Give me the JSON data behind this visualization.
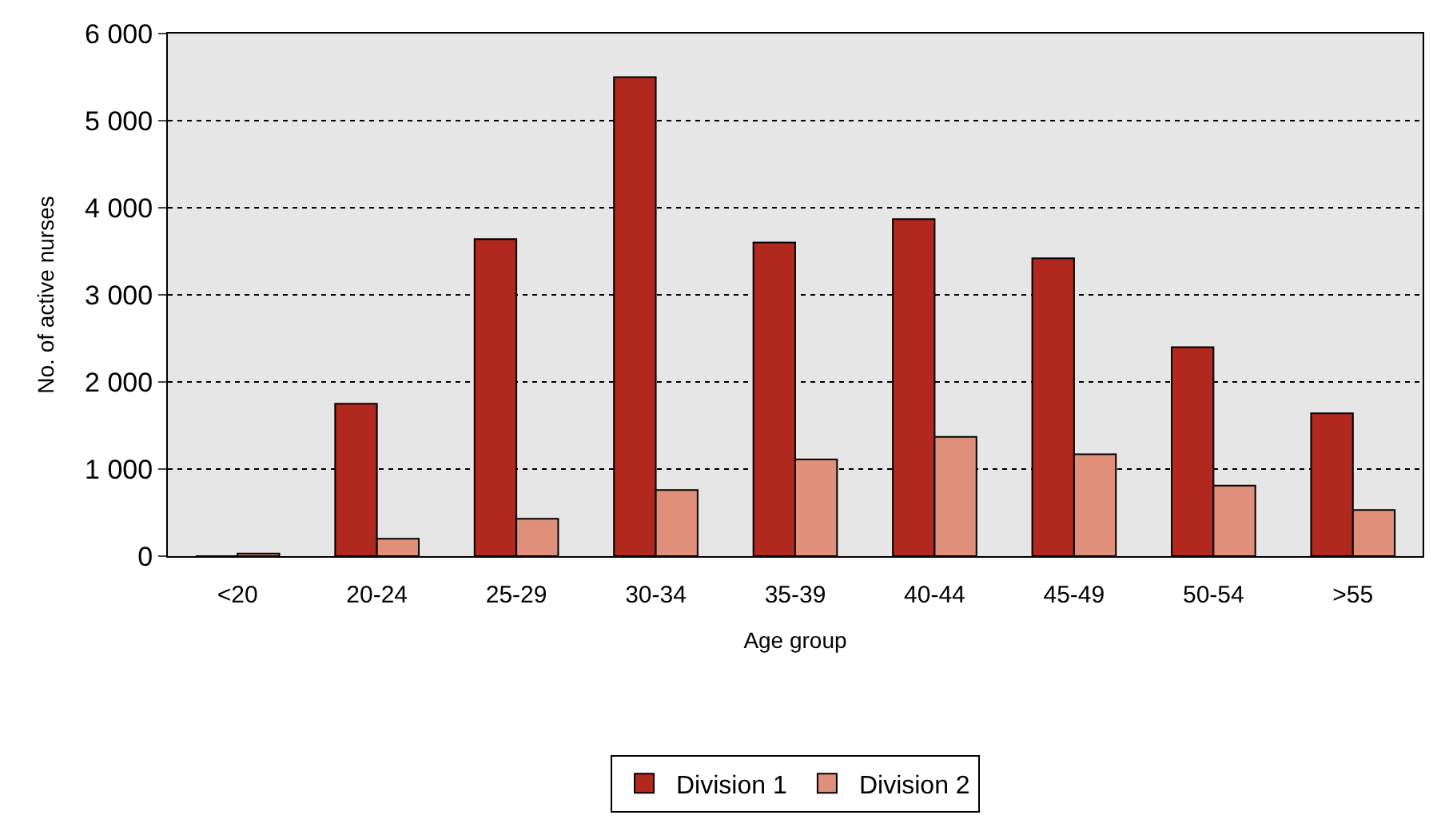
{
  "chart_data": {
    "type": "bar",
    "xlabel": "Age group",
    "ylabel": "No. of active nurses",
    "categories": [
      "<20",
      "20-24",
      "25-29",
      "30-34",
      "35-39",
      "40-44",
      "45-49",
      "50-54",
      ">55"
    ],
    "series": [
      {
        "name": "Division 1",
        "color": "#b0281e",
        "values": [
          0,
          1750,
          3640,
          5500,
          3600,
          3870,
          3420,
          2400,
          1640
        ]
      },
      {
        "name": "Division 2",
        "color": "#e0907a",
        "values": [
          30,
          200,
          430,
          760,
          1110,
          1370,
          1170,
          810,
          530
        ]
      }
    ],
    "ylim": [
      0,
      6000
    ],
    "yticks": [
      {
        "value": 0,
        "label": "0"
      },
      {
        "value": 1000,
        "label": "1 000"
      },
      {
        "value": 2000,
        "label": "2 000"
      },
      {
        "value": 3000,
        "label": "3 000"
      },
      {
        "value": 4000,
        "label": "4 000"
      },
      {
        "value": 5000,
        "label": "5 000"
      },
      {
        "value": 6000,
        "label": "6 000"
      }
    ],
    "grid": "y",
    "legend": "bottom"
  }
}
